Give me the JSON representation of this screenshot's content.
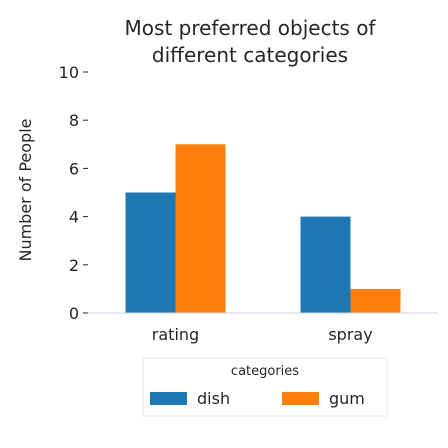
{
  "chart_data": {
    "type": "bar",
    "title_lines": [
      "Most preferred objects of",
      "different categories"
    ],
    "xlabel": "",
    "ylabel": "Number of People",
    "categories": [
      "rating",
      "spray"
    ],
    "series": [
      {
        "name": "dish",
        "values": [
          5,
          4
        ],
        "color": "#1f77b4"
      },
      {
        "name": "gum",
        "values": [
          7,
          1
        ],
        "color": "#ff7f0e"
      }
    ],
    "ylim": [
      0,
      10
    ],
    "yticks": [
      "0",
      "2",
      "4",
      "6",
      "8",
      "10"
    ],
    "legend_title": "categories",
    "legend_position": "bottom",
    "grid": false
  }
}
